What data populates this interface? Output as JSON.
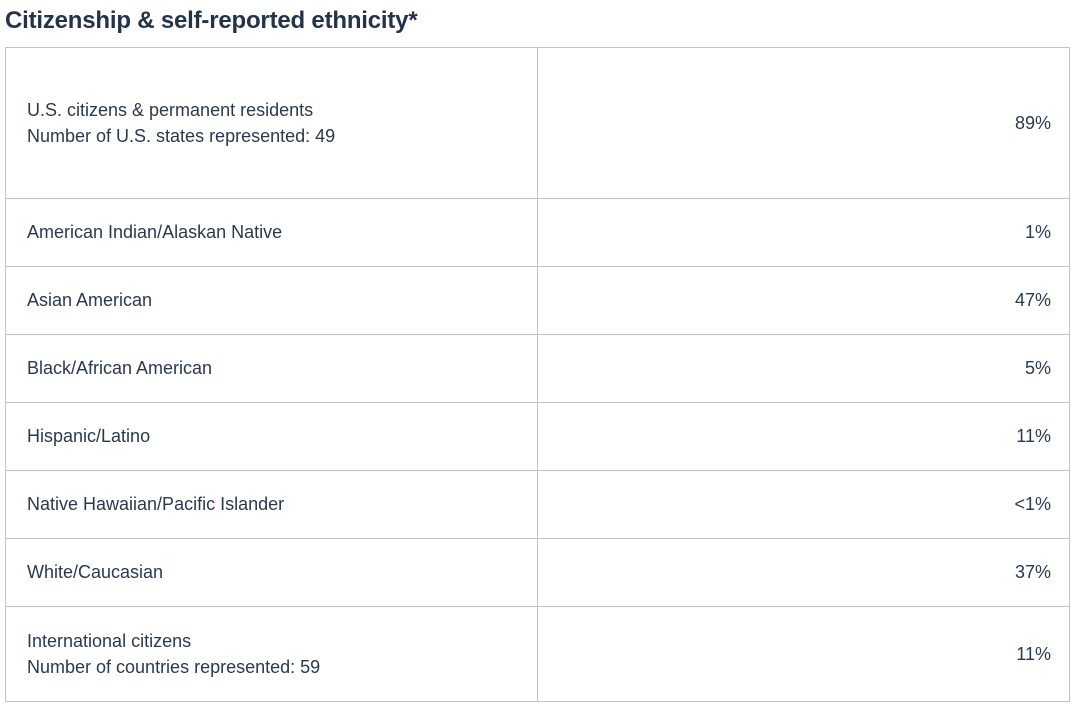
{
  "title": "Citizenship & self-reported ethnicity*",
  "colors": {
    "text": "#2b394e",
    "title_text": "#253349",
    "border": "#c3c3c3",
    "background": "#ffffff"
  },
  "table": {
    "rows": [
      {
        "label": "U.S. citizens & permanent residents",
        "sublabel": "Number of U.S. states represented: 49",
        "value": "89%"
      },
      {
        "label": "American Indian/Alaskan Native",
        "sublabel": "",
        "value": "1%"
      },
      {
        "label": "Asian American",
        "sublabel": "",
        "value": "47%"
      },
      {
        "label": "Black/African American",
        "sublabel": "",
        "value": "5%"
      },
      {
        "label": "Hispanic/Latino",
        "sublabel": "",
        "value": "11%"
      },
      {
        "label": "Native Hawaiian/Pacific Islander",
        "sublabel": "",
        "value": "<1%"
      },
      {
        "label": "White/Caucasian",
        "sublabel": "",
        "value": "37%"
      },
      {
        "label": "International citizens",
        "sublabel": "Number of countries represented: 59",
        "value": "11%"
      }
    ]
  },
  "chart_data": {
    "type": "table",
    "title": "Citizenship & self-reported ethnicity*",
    "columns": [
      "category",
      "percentage"
    ],
    "rows": [
      [
        "U.S. citizens & permanent residents (Number of U.S. states represented: 49)",
        "89%"
      ],
      [
        "American Indian/Alaskan Native",
        "1%"
      ],
      [
        "Asian American",
        "47%"
      ],
      [
        "Black/African American",
        "5%"
      ],
      [
        "Hispanic/Latino",
        "11%"
      ],
      [
        "Native Hawaiian/Pacific Islander",
        "<1%"
      ],
      [
        "White/Caucasian",
        "37%"
      ],
      [
        "International citizens (Number of countries represented: 59)",
        "11%"
      ]
    ]
  }
}
